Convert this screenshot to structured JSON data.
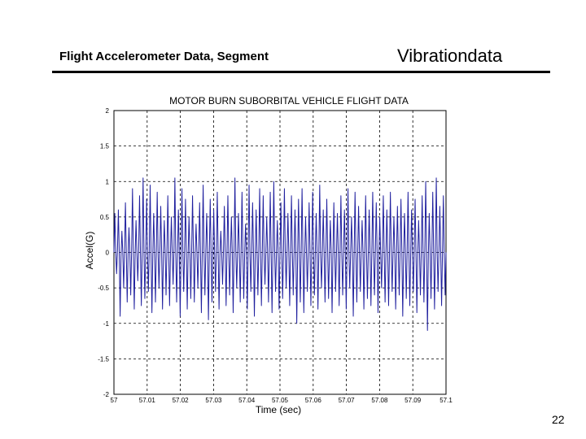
{
  "header": {
    "subtitle": "Flight Accelerometer Data, Segment",
    "brand": "Vibrationdata"
  },
  "page_number": "22",
  "colors": {
    "trace": "#1f1f9e",
    "grid": "#000000",
    "axis": "#000000",
    "rule": "#000000"
  },
  "chart_data": {
    "type": "line",
    "title": "MOTOR BURN   SUBORBITAL VEHICLE  FLIGHT DATA",
    "xlabel": "Time (sec)",
    "ylabel": "Accel(G)",
    "xlim": [
      57.0,
      57.1
    ],
    "ylim": [
      -2,
      2
    ],
    "xticks": [
      57.0,
      57.01,
      57.02,
      57.03,
      57.04,
      57.05,
      57.06,
      57.07,
      57.08,
      57.09,
      57.1
    ],
    "xtick_labels": [
      "57",
      "57.01",
      "57.02",
      "57.03",
      "57.04",
      "57.05",
      "57.06",
      "57.07",
      "57.08",
      "57.09",
      "57.1"
    ],
    "yticks": [
      2,
      1.5,
      1,
      0.5,
      0,
      -0.5,
      -1,
      -1.5,
      -2
    ],
    "ytick_labels": [
      "2",
      "1.5",
      "1",
      "0.5",
      "0",
      "-0.5",
      "-1",
      "-1.5",
      "-2"
    ],
    "grid": true,
    "series": [
      {
        "peaks": [
          0.55,
          0.6,
          0.3,
          0.7,
          0.35,
          0.9,
          0.45,
          0.8,
          1.05,
          0.75,
          0.95,
          0.55,
          0.85,
          0.65,
          0.45,
          0.8,
          0.5,
          1.05,
          0.6,
          0.9,
          0.75,
          0.5,
          0.8,
          0.4,
          0.7,
          0.95,
          0.55,
          0.75,
          0.6,
          0.85,
          0.3,
          0.65,
          0.8,
          0.5,
          1.05,
          0.55,
          0.85,
          0.4,
          0.95,
          0.7,
          0.6,
          0.9,
          0.8,
          0.5,
          0.85,
          1.0,
          0.45,
          0.7,
          0.9,
          0.55,
          0.8,
          0.6,
          0.75,
          0.9,
          0.5,
          0.7,
          0.85,
          0.55,
          0.95,
          0.6,
          0.75,
          0.45,
          0.7,
          0.55,
          0.8,
          0.6,
          0.9,
          0.5,
          0.85,
          0.65,
          0.45,
          0.8,
          0.6,
          0.85,
          0.7,
          0.5,
          0.8,
          0.6,
          0.85,
          0.5,
          0.65,
          0.75,
          0.55,
          0.85,
          0.6,
          0.75,
          0.45,
          0.8,
          1.0,
          0.55,
          0.85,
          1.05,
          0.65,
          0.8
        ],
        "troughs": [
          -0.3,
          -0.9,
          -0.5,
          -0.7,
          -0.6,
          -0.8,
          -0.4,
          -0.75,
          -0.65,
          -0.55,
          -0.85,
          -0.7,
          -0.5,
          -0.8,
          -0.6,
          -0.75,
          -0.45,
          -0.7,
          -0.9,
          -0.55,
          -0.8,
          -0.65,
          -0.7,
          -0.5,
          -0.85,
          -0.6,
          -0.95,
          -0.7,
          -0.55,
          -0.8,
          -0.45,
          -0.75,
          -0.6,
          -0.85,
          -0.5,
          -0.7,
          -0.65,
          -0.8,
          -0.55,
          -0.9,
          -0.6,
          -0.75,
          -0.45,
          -0.7,
          -0.85,
          -0.55,
          -0.8,
          -0.65,
          -0.5,
          -0.75,
          -0.6,
          -1.0,
          -0.7,
          -0.85,
          -0.55,
          -0.75,
          -0.6,
          -0.8,
          -0.5,
          -0.7,
          -0.65,
          -0.85,
          -0.55,
          -0.75,
          -0.6,
          -0.8,
          -0.5,
          -0.9,
          -0.7,
          -0.55,
          -0.8,
          -0.65,
          -0.75,
          -0.6,
          -0.85,
          -0.5,
          -0.7,
          -0.75,
          -0.55,
          -0.8,
          -0.6,
          -0.9,
          -0.65,
          -0.75,
          -0.55,
          -0.85,
          -0.6,
          -0.7,
          -1.1,
          -0.65,
          -0.8,
          -0.55,
          -0.75,
          -0.6
        ]
      }
    ]
  }
}
